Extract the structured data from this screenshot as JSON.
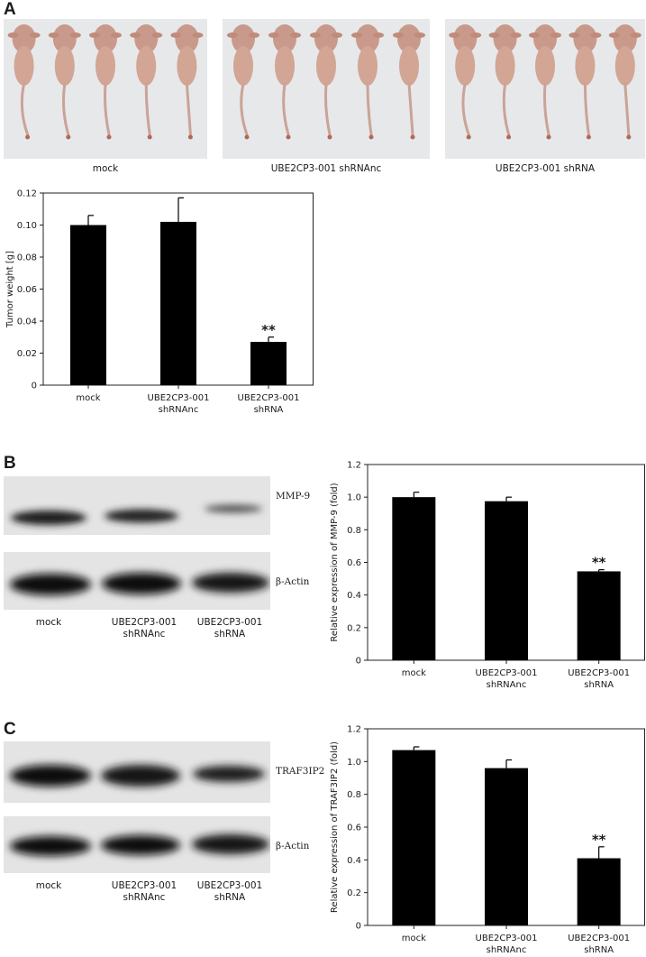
{
  "panels": {
    "a": {
      "letter": "A"
    },
    "b": {
      "letter": "B"
    },
    "c": {
      "letter": "C"
    }
  },
  "photos": {
    "captions": [
      "mock",
      "UBE2CP3-001 shRNAnc",
      "UBE2CP3-001 shRNA"
    ]
  },
  "blots": {
    "b": {
      "bands": [
        "MMP-9",
        "β-Actin"
      ],
      "lanes": [
        [
          "mock"
        ],
        [
          "UBE2CP3-001",
          "shRNAnc"
        ],
        [
          "UBE2CP3-001",
          "shRNA"
        ]
      ]
    },
    "c": {
      "bands": [
        "TRAF3IP2",
        "β-Actin"
      ],
      "lanes": [
        [
          "mock"
        ],
        [
          "UBE2CP3-001",
          "shRNAnc"
        ],
        [
          "UBE2CP3-001",
          "shRNA"
        ]
      ]
    }
  },
  "colors": {
    "bar": "#000000",
    "photo_background": "#e7e8ea",
    "blot_background": "#e4e4e4"
  },
  "chart_data": [
    {
      "type": "bar",
      "panel": "A",
      "categories": [
        [
          "mock"
        ],
        [
          "UBE2CP3-001",
          "shRNAnc"
        ],
        [
          "UBE2CP3-001",
          "shRNA"
        ]
      ],
      "values": [
        0.1,
        0.102,
        0.027
      ],
      "errors": [
        0.006,
        0.015,
        0.003
      ],
      "annotations": [
        "",
        "",
        "**"
      ],
      "ylabel": "Tumor weight [g]",
      "ylim": [
        0,
        0.12
      ],
      "yticks": [
        "0",
        "0.02",
        "0.04",
        "0.06",
        "0.08",
        "0.10",
        "0.12"
      ],
      "grid": false
    },
    {
      "type": "bar",
      "panel": "B",
      "categories": [
        [
          "mock"
        ],
        [
          "UBE2CP3-001",
          "shRNAnc"
        ],
        [
          "UBE2CP3-001",
          "shRNA"
        ]
      ],
      "values": [
        1.0,
        0.975,
        0.545
      ],
      "errors": [
        0.03,
        0.025,
        0.01
      ],
      "annotations": [
        "",
        "",
        "**"
      ],
      "ylabel": "Relative expression of MMP-9 (fold)",
      "ylim": [
        0,
        1.2
      ],
      "yticks": [
        "0",
        "0.2",
        "0.4",
        "0.6",
        "0.8",
        "1.0",
        "1.2"
      ],
      "grid": false
    },
    {
      "type": "bar",
      "panel": "C",
      "categories": [
        [
          "mock"
        ],
        [
          "UBE2CP3-001",
          "shRNAnc"
        ],
        [
          "UBE2CP3-001",
          "shRNA"
        ]
      ],
      "values": [
        1.07,
        0.96,
        0.41
      ],
      "errors": [
        0.02,
        0.05,
        0.07
      ],
      "annotations": [
        "",
        "",
        "**"
      ],
      "ylabel": "Relative expression of TRAF3IP2 (fold)",
      "ylim": [
        0,
        1.2
      ],
      "yticks": [
        "0",
        "0.2",
        "0.4",
        "0.6",
        "0.8",
        "1.0",
        "1.2"
      ],
      "grid": false
    }
  ]
}
